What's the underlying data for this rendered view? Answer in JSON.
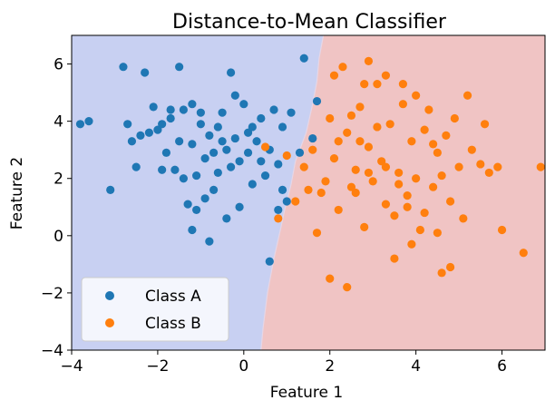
{
  "chart_data": {
    "type": "scatter",
    "title": "Distance-to-Mean Classifier",
    "xlabel": "Feature 1",
    "ylabel": "Feature 2",
    "xlim": [
      -4,
      7
    ],
    "ylim": [
      -4,
      7
    ],
    "xticks": [
      -4,
      -2,
      0,
      2,
      4,
      6
    ],
    "yticks": [
      -4,
      -2,
      0,
      2,
      4,
      6
    ],
    "tick_labels_x": [
      "−4",
      "−2",
      "0",
      "2",
      "4",
      "6"
    ],
    "tick_labels_y": [
      "−4",
      "−2",
      "0",
      "2",
      "4",
      "6"
    ],
    "grid": false,
    "legend_position": "lower-left",
    "region_colors": {
      "Class A": "#c8d0f2",
      "Class B": "#f0c4c4"
    },
    "decision_boundary": [
      [
        1.85,
        7
      ],
      [
        1.75,
        6.2
      ],
      [
        1.7,
        5.4
      ],
      [
        1.6,
        4.6
      ],
      [
        1.45,
        3.6
      ],
      [
        1.2,
        2.6
      ],
      [
        1.1,
        1.8
      ],
      [
        0.95,
        0.9
      ],
      [
        0.85,
        0.2
      ],
      [
        0.7,
        -0.8
      ],
      [
        0.55,
        -2.0
      ],
      [
        0.45,
        -3.2
      ],
      [
        0.4,
        -4
      ]
    ],
    "series": [
      {
        "name": "Class A",
        "color": "#1f77b4",
        "points": [
          [
            -3.8,
            3.9
          ],
          [
            -3.6,
            4.0
          ],
          [
            -3.1,
            1.6
          ],
          [
            -2.8,
            5.9
          ],
          [
            -2.6,
            3.3
          ],
          [
            -2.5,
            2.4
          ],
          [
            -2.3,
            5.7
          ],
          [
            -2.2,
            3.6
          ],
          [
            -2.0,
            3.7
          ],
          [
            -1.9,
            3.9
          ],
          [
            -1.8,
            2.9
          ],
          [
            -1.7,
            4.1
          ],
          [
            -1.6,
            2.3
          ],
          [
            -1.5,
            3.3
          ],
          [
            -1.4,
            4.4
          ],
          [
            -1.3,
            1.1
          ],
          [
            -1.2,
            4.6
          ],
          [
            -1.1,
            2.1
          ],
          [
            -1.0,
            3.9
          ],
          [
            -0.9,
            2.7
          ],
          [
            -0.8,
            3.5
          ],
          [
            -0.7,
            1.6
          ],
          [
            -0.6,
            2.2
          ],
          [
            -0.5,
            4.3
          ],
          [
            -0.4,
            3.0
          ],
          [
            -0.3,
            5.7
          ],
          [
            -0.2,
            3.4
          ],
          [
            -0.1,
            2.6
          ],
          [
            0.0,
            4.6
          ],
          [
            0.1,
            3.6
          ],
          [
            0.2,
            1.8
          ],
          [
            0.3,
            3.3
          ],
          [
            0.4,
            4.1
          ],
          [
            0.5,
            2.1
          ],
          [
            0.6,
            3.0
          ],
          [
            0.7,
            4.4
          ],
          [
            0.8,
            2.5
          ],
          [
            0.9,
            3.8
          ],
          [
            1.0,
            1.2
          ],
          [
            1.1,
            4.3
          ],
          [
            -1.7,
            4.4
          ],
          [
            -0.9,
            1.3
          ],
          [
            -1.1,
            0.9
          ],
          [
            -1.2,
            3.2
          ],
          [
            -0.6,
            3.8
          ],
          [
            -0.1,
            1.0
          ],
          [
            0.4,
            2.6
          ],
          [
            -2.1,
            4.5
          ],
          [
            -1.9,
            2.3
          ],
          [
            -1.5,
            5.9
          ],
          [
            -2.4,
            3.5
          ],
          [
            -0.8,
            -0.2
          ],
          [
            -1.2,
            0.2
          ],
          [
            0.6,
            -0.9
          ],
          [
            1.4,
            6.2
          ],
          [
            0.8,
            0.9
          ],
          [
            -0.5,
            3.3
          ],
          [
            -0.3,
            2.4
          ],
          [
            0.2,
            3.8
          ],
          [
            0.1,
            2.9
          ],
          [
            -0.2,
            4.9
          ],
          [
            -1.0,
            4.3
          ],
          [
            -1.4,
            2.0
          ],
          [
            -0.7,
            2.9
          ],
          [
            0.9,
            1.6
          ],
          [
            1.3,
            2.9
          ],
          [
            1.6,
            3.4
          ],
          [
            1.7,
            4.7
          ],
          [
            -0.4,
            0.6
          ],
          [
            -2.7,
            3.9
          ]
        ]
      },
      {
        "name": "Class B",
        "color": "#ff7f0e",
        "points": [
          [
            0.5,
            3.1
          ],
          [
            0.8,
            0.6
          ],
          [
            1.0,
            2.8
          ],
          [
            1.2,
            1.2
          ],
          [
            1.4,
            2.4
          ],
          [
            1.6,
            3.0
          ],
          [
            1.8,
            1.5
          ],
          [
            2.0,
            4.1
          ],
          [
            2.1,
            2.7
          ],
          [
            2.2,
            0.9
          ],
          [
            2.3,
            5.9
          ],
          [
            2.4,
            3.6
          ],
          [
            2.5,
            1.7
          ],
          [
            2.6,
            2.3
          ],
          [
            2.7,
            4.5
          ],
          [
            2.8,
            0.3
          ],
          [
            2.9,
            3.1
          ],
          [
            3.0,
            1.9
          ],
          [
            3.1,
            5.3
          ],
          [
            3.2,
            2.6
          ],
          [
            3.3,
            1.1
          ],
          [
            3.4,
            3.9
          ],
          [
            3.5,
            0.7
          ],
          [
            3.6,
            2.2
          ],
          [
            3.7,
            4.6
          ],
          [
            3.8,
            1.4
          ],
          [
            3.9,
            3.3
          ],
          [
            4.0,
            2.0
          ],
          [
            4.1,
            0.2
          ],
          [
            4.2,
            3.7
          ],
          [
            4.3,
            4.4
          ],
          [
            4.4,
            1.7
          ],
          [
            4.5,
            2.9
          ],
          [
            4.6,
            -1.3
          ],
          [
            4.7,
            3.5
          ],
          [
            4.8,
            1.2
          ],
          [
            4.9,
            4.1
          ],
          [
            5.0,
            2.4
          ],
          [
            5.1,
            0.6
          ],
          [
            5.2,
            4.9
          ],
          [
            5.3,
            3.0
          ],
          [
            5.5,
            2.5
          ],
          [
            5.7,
            2.2
          ],
          [
            5.9,
            2.4
          ],
          [
            6.0,
            0.2
          ],
          [
            6.5,
            -0.6
          ],
          [
            6.9,
            2.4
          ],
          [
            2.4,
            -1.8
          ],
          [
            2.0,
            -1.5
          ],
          [
            3.5,
            -0.8
          ],
          [
            3.9,
            -0.3
          ],
          [
            4.2,
            0.8
          ],
          [
            4.8,
            -1.1
          ],
          [
            2.7,
            3.3
          ],
          [
            3.1,
            3.8
          ],
          [
            3.3,
            2.4
          ],
          [
            2.9,
            2.2
          ],
          [
            2.5,
            4.2
          ],
          [
            3.6,
            1.8
          ],
          [
            4.4,
            3.2
          ],
          [
            1.9,
            1.9
          ],
          [
            2.2,
            3.3
          ],
          [
            1.7,
            0.1
          ],
          [
            2.8,
            5.3
          ],
          [
            3.3,
            5.6
          ],
          [
            4.0,
            4.9
          ],
          [
            2.6,
            1.5
          ],
          [
            1.5,
            1.6
          ],
          [
            3.8,
            1.0
          ],
          [
            4.6,
            2.1
          ],
          [
            5.6,
            3.9
          ],
          [
            2.1,
            5.6
          ],
          [
            2.9,
            6.1
          ],
          [
            3.7,
            5.3
          ],
          [
            4.5,
            0.1
          ]
        ]
      }
    ]
  }
}
